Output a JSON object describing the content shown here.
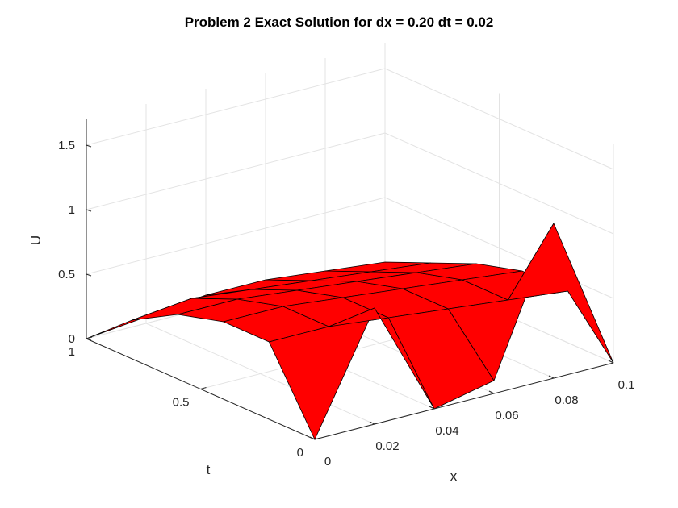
{
  "chart_data": {
    "type": "surface",
    "title": "Problem 2 Exact Solution for dx = 0.20 dt = 0.02",
    "xlabel": "x",
    "ylabel": "t",
    "zlabel": "U",
    "x_ticks": [
      "0",
      "0.02",
      "0.04",
      "0.06",
      "0.08",
      "0.1"
    ],
    "y_ticks": [
      "0",
      "0.5",
      "1"
    ],
    "z_ticks": [
      "0",
      "0.5",
      "1",
      "1.5"
    ],
    "xlim": [
      0,
      0.1
    ],
    "ylim": [
      0,
      1
    ],
    "zlim": [
      0,
      1.7
    ],
    "grid": true,
    "surface_color": "#ff0000",
    "edge_color": "#000000",
    "x": [
      0,
      0.02,
      0.04,
      0.06,
      0.08,
      0.1
    ],
    "t": [
      1.0,
      0.8,
      0.6,
      0.4,
      0.2,
      0.0
    ],
    "U": [
      [
        0.0,
        0.05,
        0.1,
        0.1,
        0.05,
        0.0
      ],
      [
        0.3,
        0.35,
        0.3,
        0.25,
        0.2,
        0.15
      ],
      [
        0.5,
        0.5,
        0.45,
        0.4,
        0.35,
        0.3
      ],
      [
        0.6,
        0.6,
        0.55,
        0.5,
        0.45,
        0.4
      ],
      [
        0.6,
        0.6,
        0.55,
        0.5,
        0.45,
        0.4
      ],
      [
        0.0,
        0.9,
        0.0,
        0.1,
        1.2,
        0.0
      ]
    ]
  }
}
